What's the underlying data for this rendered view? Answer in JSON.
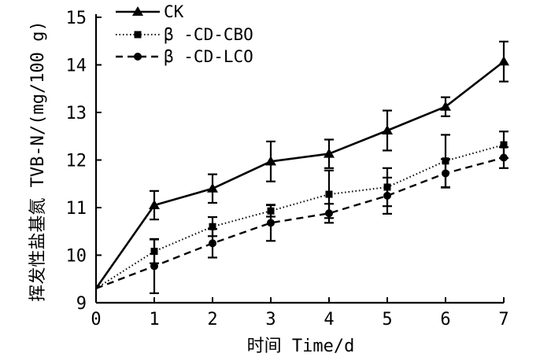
{
  "chart_data": {
    "type": "line",
    "title": "",
    "xlabel": "时间 Time/d",
    "ylabel": "挥发性盐基氮 TVB-N/(mg/100 g)",
    "x": [
      0,
      1,
      2,
      3,
      4,
      5,
      6,
      7
    ],
    "xlim": [
      0,
      7
    ],
    "ylim": [
      9,
      15
    ],
    "x_ticks": [
      "0",
      "1",
      "2",
      "3",
      "4",
      "5",
      "6",
      "7"
    ],
    "y_ticks": [
      "9",
      "10",
      "11",
      "12",
      "13",
      "14",
      "15"
    ],
    "grid": false,
    "legend_position": "top-left",
    "series": [
      {
        "name": "CK",
        "marker": "triangle",
        "line_style": "solid",
        "values": [
          9.3,
          11.05,
          11.4,
          11.97,
          12.13,
          12.62,
          13.12,
          14.07
        ],
        "errors": [
          0,
          0.3,
          0.3,
          0.42,
          0.3,
          0.42,
          0.2,
          0.42
        ]
      },
      {
        "name": "β-CD-CBO",
        "marker": "square",
        "line_style": "dotted",
        "values": [
          9.3,
          10.08,
          10.6,
          10.93,
          11.28,
          11.43,
          11.98,
          12.32
        ],
        "errors": [
          0,
          0.25,
          0.2,
          0.12,
          0.5,
          0.4,
          0.55,
          0.28
        ]
      },
      {
        "name": "β-CD-LCO",
        "marker": "circle",
        "line_style": "dashed",
        "values": [
          9.3,
          9.77,
          10.25,
          10.68,
          10.88,
          11.25,
          11.72,
          12.05
        ],
        "errors": [
          0,
          0.57,
          0.3,
          0.38,
          0.2,
          0.38,
          0.3,
          0.22
        ]
      }
    ]
  },
  "legend": {
    "ck_label": "CK",
    "cbo_label": "β -CD-CBO",
    "lco_label": "β -CD-LCO"
  },
  "axes": {
    "x_title": "时间 Time/d",
    "y_title": "挥发性盐基氮 TVB-N/(mg/100 g)"
  },
  "colors": {
    "ink": "#000000",
    "background": "#ffffff"
  }
}
